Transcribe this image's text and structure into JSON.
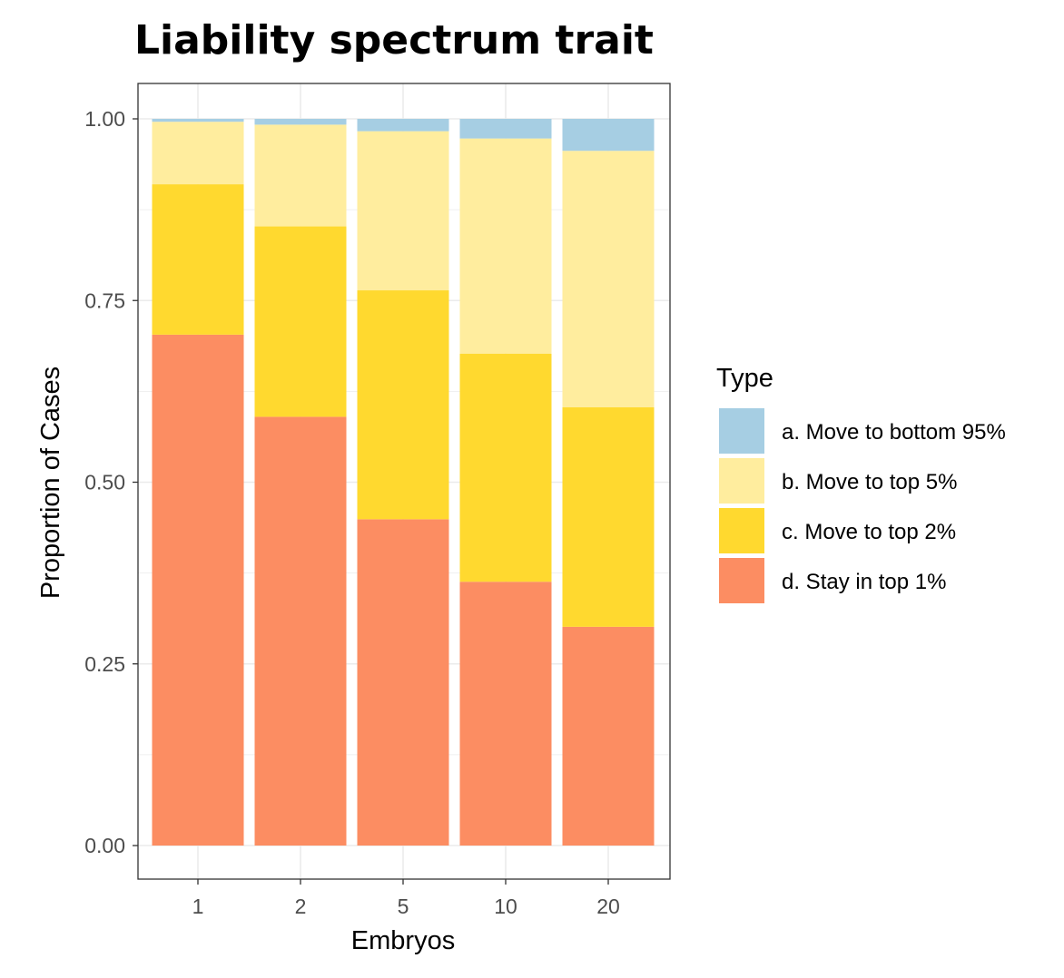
{
  "chart_data": {
    "type": "bar",
    "stacked": true,
    "title": "Liability spectrum trait",
    "xlabel": "Embryos",
    "ylabel": "Proportion of Cases",
    "categories": [
      "1",
      "2",
      "5",
      "10",
      "20"
    ],
    "ylim": [
      0,
      1
    ],
    "yticks": [
      "0.00",
      "0.25",
      "0.50",
      "0.75",
      "1.00"
    ],
    "grid": true,
    "legend_title": "Type",
    "legend_position": "right",
    "series": [
      {
        "name": "d. Stay in top 1%",
        "color": "#FC8D62",
        "values": [
          0.703,
          0.59,
          0.449,
          0.363,
          0.301
        ]
      },
      {
        "name": "c. Move to top 2%",
        "color": "#FFD92F",
        "values": [
          0.207,
          0.262,
          0.315,
          0.314,
          0.302
        ]
      },
      {
        "name": "b. Move to top 5%",
        "color": "#FFED9E",
        "values": [
          0.086,
          0.14,
          0.219,
          0.296,
          0.353
        ]
      },
      {
        "name": "a. Move to bottom 95%",
        "color": "#A6CEE3",
        "values": [
          0.004,
          0.008,
          0.017,
          0.027,
          0.044
        ]
      }
    ]
  }
}
